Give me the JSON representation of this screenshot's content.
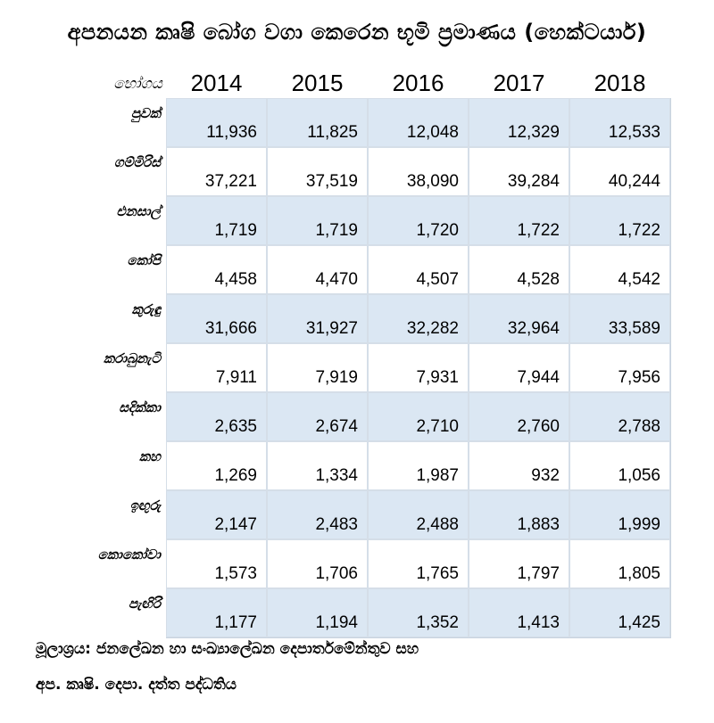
{
  "chart_data": {
    "type": "table",
    "title": "අපනයන කෘෂි බෝග වගා කෙරෙන භූමි ප්‍රමාණය (හෙක්ටයාර්)",
    "row_header": "භෝගය",
    "columns": [
      "2014",
      "2015",
      "2016",
      "2017",
      "2018"
    ],
    "rows": [
      {
        "label": "පුවක්",
        "values": [
          "11,936",
          "11,825",
          "12,048",
          "12,329",
          "12,533"
        ]
      },
      {
        "label": "ගම්මිරිස්",
        "values": [
          "37,221",
          "37,519",
          "38,090",
          "39,284",
          "40,244"
        ]
      },
      {
        "label": "එනසාල්",
        "values": [
          "1,719",
          "1,719",
          "1,720",
          "1,722",
          "1,722"
        ]
      },
      {
        "label": "කෝපි",
        "values": [
          "4,458",
          "4,470",
          "4,507",
          "4,528",
          "4,542"
        ]
      },
      {
        "label": "කුරුඳු",
        "values": [
          "31,666",
          "31,927",
          "32,282",
          "32,964",
          "33,589"
        ]
      },
      {
        "label": "කරාබුනැටි",
        "values": [
          "7,911",
          "7,919",
          "7,931",
          "7,944",
          "7,956"
        ]
      },
      {
        "label": "සදික්කා",
        "values": [
          "2,635",
          "2,674",
          "2,710",
          "2,760",
          "2,788"
        ]
      },
      {
        "label": "කහ",
        "values": [
          "1,269",
          "1,334",
          "1,987",
          "932",
          "1,056"
        ]
      },
      {
        "label": "ඉඟුරු",
        "values": [
          "2,147",
          "2,483",
          "2,488",
          "1,883",
          "1,999"
        ]
      },
      {
        "label": "කොකෝවා",
        "values": [
          "1,573",
          "1,706",
          "1,765",
          "1,797",
          "1,805"
        ]
      },
      {
        "label": "පැඟිරි",
        "values": [
          "1,177",
          "1,194",
          "1,352",
          "1,413",
          "1,425"
        ]
      }
    ],
    "shade_color": "#dbe7f3"
  },
  "footer": {
    "line1": "මූලාශ්‍රය: ජනලේඛන හා සංඛ්‍යාලේඛන දෙපාර්තමේන්තුව සහ",
    "line2": "අප. කෘෂි. දෙපා. දත්ත පද්ධතිය"
  }
}
